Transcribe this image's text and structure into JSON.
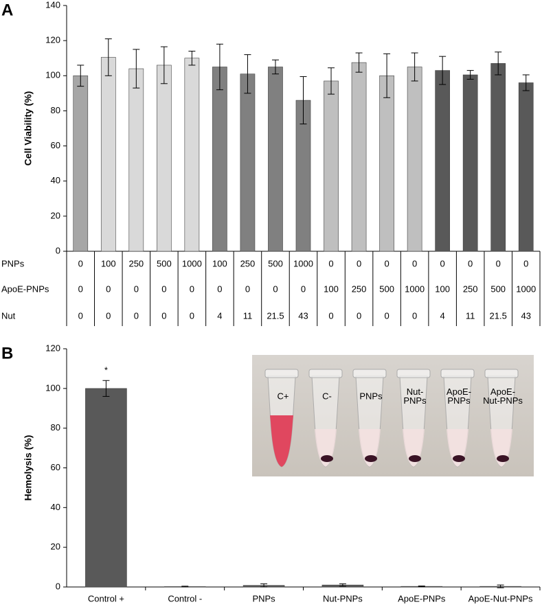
{
  "chart_data": [
    {
      "type": "bar",
      "panel_label": "A",
      "y_label": "Cell Viability (%)",
      "categories": [
        null,
        null,
        null,
        null,
        null,
        null,
        null,
        null,
        null,
        null,
        null,
        null,
        null,
        null,
        null,
        null,
        null
      ],
      "values": [
        100,
        110.5,
        104,
        106,
        110,
        105,
        101,
        105,
        86,
        97,
        107.5,
        100,
        105,
        103,
        100.5,
        107,
        96
      ],
      "errors": [
        6,
        10.5,
        11,
        10.5,
        4,
        13,
        11,
        4,
        13.5,
        7.5,
        5.5,
        12.5,
        8,
        8,
        2.5,
        6.5,
        4.5
      ],
      "colors": [
        "#a6a6a6",
        "#d9d9d9",
        "#d9d9d9",
        "#d9d9d9",
        "#d9d9d9",
        "#808080",
        "#808080",
        "#808080",
        "#808080",
        "#bfbfbf",
        "#bfbfbf",
        "#bfbfbf",
        "#bfbfbf",
        "#595959",
        "#595959",
        "#595959",
        "#595959"
      ],
      "ylim": [
        0,
        140
      ],
      "yticks": [
        0,
        20,
        40,
        60,
        80,
        100,
        120,
        140
      ],
      "table": [
        {
          "label": "PNPs",
          "cells": [
            0,
            100,
            250,
            500,
            1000,
            100,
            250,
            500,
            1000,
            0,
            0,
            0,
            0,
            0,
            0,
            0,
            0
          ]
        },
        {
          "label": "ApoE-PNPs",
          "cells": [
            0,
            0,
            0,
            0,
            0,
            0,
            0,
            0,
            0,
            100,
            250,
            500,
            1000,
            100,
            250,
            500,
            1000
          ]
        },
        {
          "label": "Nut",
          "cells": [
            0,
            0,
            0,
            0,
            0,
            4,
            11,
            21.5,
            43,
            0,
            0,
            0,
            0,
            4,
            11,
            21.5,
            43
          ]
        }
      ]
    },
    {
      "type": "bar",
      "panel_label": "B",
      "y_label": "Hemolysis (%)",
      "categories": [
        "Control +",
        "Control -",
        "PNPs",
        "Nut-PNPs",
        "ApoE-PNPs",
        "ApoE-Nut-PNPs"
      ],
      "values": [
        100,
        0.2,
        0.8,
        1.0,
        0.3,
        0.3
      ],
      "errors": [
        4,
        0.2,
        0.8,
        0.6,
        0.2,
        0.7
      ],
      "colors": [
        "#595959",
        "#595959",
        "#595959",
        "#595959",
        "#595959",
        "#595959"
      ],
      "ylim": [
        0,
        120
      ],
      "yticks": [
        0,
        20,
        40,
        60,
        80,
        100,
        120
      ],
      "annotation": "*",
      "inset_labels": [
        "C+",
        "C-",
        "PNPs",
        "Nut-\nPNPs",
        "ApoE-\nPNPs",
        "ApoE-\nNut-PNPs"
      ]
    }
  ]
}
